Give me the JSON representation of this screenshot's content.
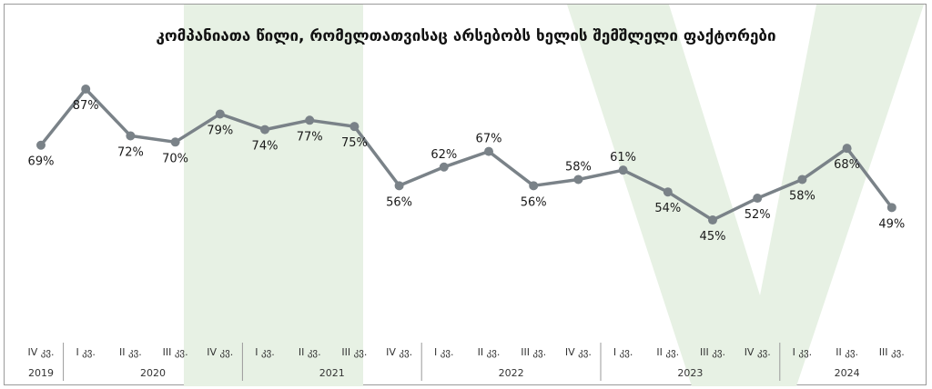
{
  "chart_data": {
    "type": "line",
    "title": "კომპანიათა წილი, რომელთათვისაც არსებობს ხელის შემშლელი ფაქტორები",
    "xlabel": "",
    "ylabel": "",
    "ylim": [
      0,
      100
    ],
    "grid": false,
    "legend": "none",
    "categories": [
      "IV კვ.",
      "I კვ.",
      "II კვ.",
      "III კვ.",
      "IV კვ.",
      "I კვ.",
      "II კვ.",
      "III კვ.",
      "IV კვ.",
      "I კვ.",
      "II კვ.",
      "III კვ.",
      "IV კვ.",
      "I კვ.",
      "II კვ.",
      "III კვ.",
      "IV კვ.",
      "I კვ.",
      "II კვ.",
      "III კვ."
    ],
    "years": [
      {
        "label": "2019",
        "start": 0,
        "end": 0
      },
      {
        "label": "2020",
        "start": 1,
        "end": 4
      },
      {
        "label": "2021",
        "start": 5,
        "end": 8
      },
      {
        "label": "2022",
        "start": 9,
        "end": 12
      },
      {
        "label": "2023",
        "start": 13,
        "end": 16
      },
      {
        "label": "2024",
        "start": 17,
        "end": 19
      }
    ],
    "values": [
      69,
      87,
      72,
      70,
      79,
      74,
      77,
      75,
      56,
      62,
      67,
      56,
      58,
      61,
      54,
      45,
      52,
      58,
      68,
      49
    ],
    "value_labels": [
      "69%",
      "87%",
      "72%",
      "70%",
      "79%",
      "74%",
      "77%",
      "75%",
      "56%",
      "62%",
      "67%",
      "56%",
      "58%",
      "61%",
      "54%",
      "45%",
      "52%",
      "58%",
      "68%",
      "49%"
    ],
    "label_pos": [
      "below",
      "below",
      "below",
      "below",
      "below",
      "below",
      "below",
      "below",
      "below",
      "above",
      "above",
      "below",
      "above",
      "above",
      "below",
      "below",
      "below",
      "below",
      "below",
      "below"
    ],
    "colors": {
      "line": "#7a8288",
      "marker": "#7a8288",
      "watermark": "#e7f1e4",
      "divider": "#9a9a9a"
    }
  }
}
